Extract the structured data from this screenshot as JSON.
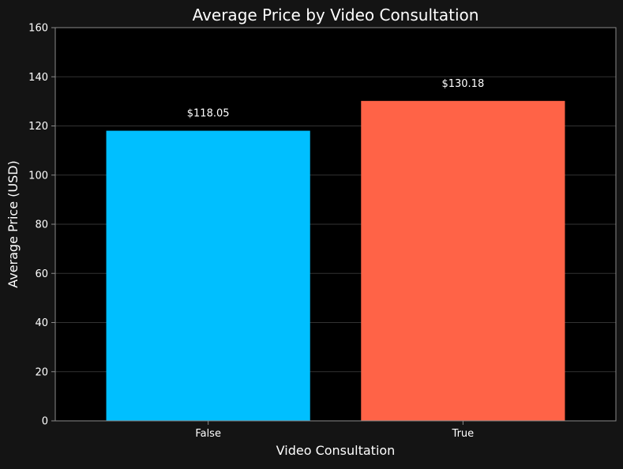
{
  "chart_data": {
    "type": "bar",
    "title": "Average Price by Video Consultation",
    "xlabel": "Video Consultation",
    "ylabel": "Average Price (USD)",
    "categories": [
      "False",
      "True"
    ],
    "values": [
      118.05,
      130.18
    ],
    "value_labels": [
      "$118.05",
      "$130.18"
    ],
    "bar_colors": [
      "#00BFFF",
      "#FF6347"
    ],
    "ylim": [
      0,
      160
    ],
    "yticks": [
      0,
      20,
      40,
      60,
      80,
      100,
      120,
      140,
      160
    ],
    "grid": true
  },
  "colors": {
    "figure_background": "#141414",
    "plot_background": "#000000",
    "text": "#FFFFFF",
    "grid": "#333333",
    "spine": "#8A8A8A"
  }
}
